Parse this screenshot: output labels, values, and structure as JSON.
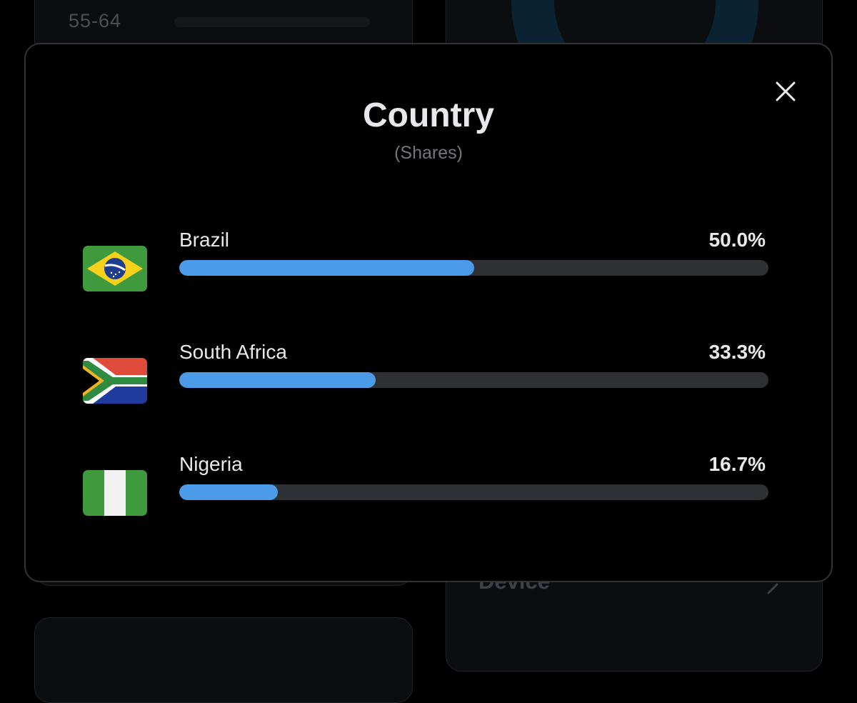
{
  "background": {
    "age_label": "55-64",
    "device_label": "Device"
  },
  "modal": {
    "title": "Country",
    "subtitle": "(Shares)",
    "close_icon": "close-icon",
    "bar_color": "#4b9be8",
    "track_color": "#2f3033",
    "rows": [
      {
        "name": "Brazil",
        "percent_label": "50.0%",
        "share": 0.5,
        "flag_icon": "brazil-flag-icon"
      },
      {
        "name": "South Africa",
        "percent_label": "33.3%",
        "share": 0.333,
        "flag_icon": "south-africa-flag-icon"
      },
      {
        "name": "Nigeria",
        "percent_label": "16.7%",
        "share": 0.167,
        "flag_icon": "nigeria-flag-icon"
      }
    ]
  }
}
